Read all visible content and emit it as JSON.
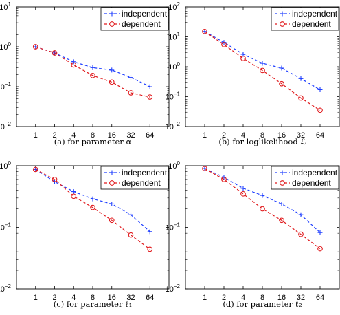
{
  "colors": {
    "independent": "#1f3fff",
    "dependent": "#e0191c",
    "frame": "#000000"
  },
  "chart_data": [
    {
      "type": "line",
      "caption": "(a) for parameter α",
      "x": [
        "1",
        "2",
        "4",
        "8",
        "16",
        "32",
        "64"
      ],
      "yscale": "log",
      "ylim": [
        0.01,
        10
      ],
      "yticks": [
        0.01,
        0.1,
        1,
        10
      ],
      "legend": "top-right",
      "series": [
        {
          "name": "independent",
          "marker": "+",
          "values": [
            1.0,
            0.7,
            0.42,
            0.3,
            0.26,
            0.17,
            0.1
          ]
        },
        {
          "name": "dependent",
          "marker": "o",
          "values": [
            1.0,
            0.7,
            0.35,
            0.19,
            0.13,
            0.07,
            0.055
          ]
        }
      ]
    },
    {
      "type": "line",
      "caption": "(b) for loglikelihood ℒ",
      "x": [
        "1",
        "2",
        "4",
        "8",
        "16",
        "32",
        "64"
      ],
      "yscale": "log",
      "ylim": [
        0.01,
        100
      ],
      "yticks": [
        0.01,
        0.1,
        1,
        10,
        100
      ],
      "legend": "top-right",
      "series": [
        {
          "name": "independent",
          "marker": "+",
          "values": [
            15,
            6.5,
            2.6,
            1.3,
            0.9,
            0.4,
            0.17
          ]
        },
        {
          "name": "dependent",
          "marker": "o",
          "values": [
            15,
            5.5,
            1.9,
            0.75,
            0.27,
            0.09,
            0.035
          ]
        }
      ]
    },
    {
      "type": "line",
      "caption": "(c) for parameter ℓ₁",
      "x": [
        "1",
        "2",
        "4",
        "8",
        "16",
        "32",
        "64"
      ],
      "yscale": "log",
      "ylim": [
        0.01,
        1
      ],
      "yticks": [
        0.01,
        0.1,
        1
      ],
      "legend": "top-right",
      "series": [
        {
          "name": "independent",
          "marker": "+",
          "values": [
            0.87,
            0.55,
            0.38,
            0.29,
            0.24,
            0.16,
            0.085
          ]
        },
        {
          "name": "dependent",
          "marker": "o",
          "values": [
            0.87,
            0.6,
            0.32,
            0.21,
            0.13,
            0.075,
            0.044
          ]
        }
      ]
    },
    {
      "type": "line",
      "caption": "(d) for parameter ℓ₂",
      "x": [
        "1",
        "2",
        "4",
        "8",
        "16",
        "32",
        "64"
      ],
      "yscale": "log",
      "ylim": [
        0.01,
        1
      ],
      "yticks": [
        0.01,
        0.1,
        1
      ],
      "legend": "top-right",
      "series": [
        {
          "name": "independent",
          "marker": "+",
          "values": [
            0.9,
            0.65,
            0.43,
            0.33,
            0.24,
            0.16,
            0.082
          ]
        },
        {
          "name": "dependent",
          "marker": "o",
          "values": [
            0.9,
            0.6,
            0.35,
            0.2,
            0.13,
            0.077,
            0.045
          ]
        }
      ]
    }
  ]
}
